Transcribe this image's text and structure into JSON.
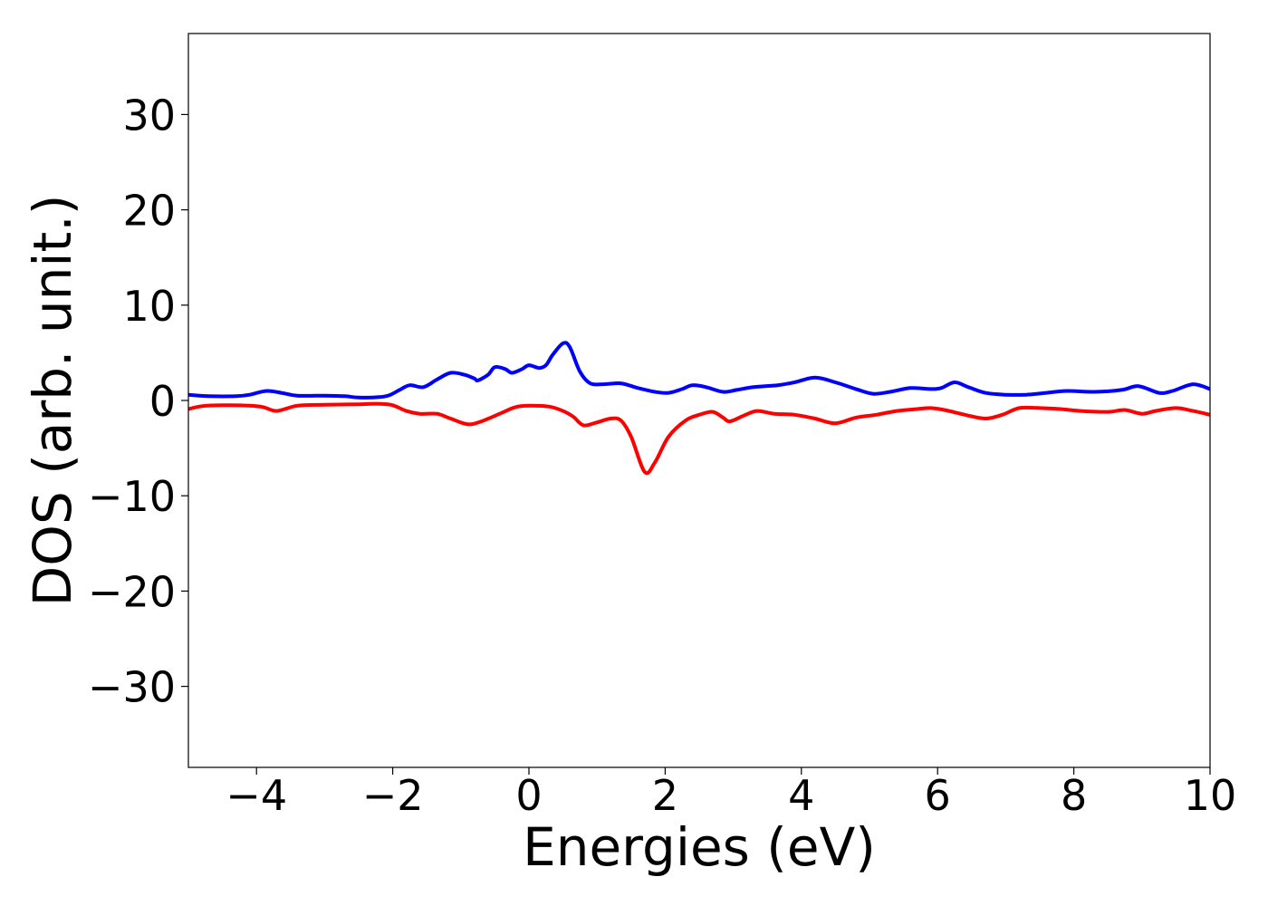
{
  "chart_data": {
    "type": "line",
    "title": "",
    "xlabel": "Energies (eV)",
    "ylabel": "DOS (arb. unit.)",
    "xlim": [
      -5,
      10
    ],
    "ylim": [
      -38.5,
      38.5
    ],
    "x_ticks": [
      -4,
      -2,
      0,
      2,
      4,
      6,
      8,
      10
    ],
    "x_tick_labels": [
      "−4",
      "−2",
      "0",
      "2",
      "4",
      "6",
      "8",
      "10"
    ],
    "y_ticks": [
      -30,
      -20,
      -10,
      0,
      10,
      20,
      30
    ],
    "y_tick_labels": [
      "−30",
      "−20",
      "−10",
      "0",
      "10",
      "20",
      "30"
    ],
    "grid": false,
    "legend": "none",
    "series": [
      {
        "color": "#0000ff",
        "points": [
          [
            -5.0,
            0.6
          ],
          [
            -4.7,
            0.45
          ],
          [
            -4.3,
            0.45
          ],
          [
            -4.1,
            0.6
          ],
          [
            -3.85,
            1.0
          ],
          [
            -3.6,
            0.75
          ],
          [
            -3.4,
            0.5
          ],
          [
            -3.0,
            0.5
          ],
          [
            -2.7,
            0.45
          ],
          [
            -2.5,
            0.3
          ],
          [
            -2.2,
            0.35
          ],
          [
            -2.05,
            0.55
          ],
          [
            -1.9,
            1.1
          ],
          [
            -1.75,
            1.6
          ],
          [
            -1.55,
            1.4
          ],
          [
            -1.35,
            2.2
          ],
          [
            -1.15,
            2.9
          ],
          [
            -0.95,
            2.7
          ],
          [
            -0.8,
            2.3
          ],
          [
            -0.75,
            2.1
          ],
          [
            -0.6,
            2.7
          ],
          [
            -0.5,
            3.5
          ],
          [
            -0.35,
            3.3
          ],
          [
            -0.25,
            2.9
          ],
          [
            -0.1,
            3.3
          ],
          [
            0.0,
            3.7
          ],
          [
            0.15,
            3.4
          ],
          [
            0.25,
            3.7
          ],
          [
            0.35,
            4.8
          ],
          [
            0.5,
            6.0
          ],
          [
            0.6,
            5.6
          ],
          [
            0.75,
            3.0
          ],
          [
            0.9,
            1.8
          ],
          [
            1.1,
            1.7
          ],
          [
            1.35,
            1.8
          ],
          [
            1.6,
            1.3
          ],
          [
            1.85,
            0.9
          ],
          [
            2.05,
            0.8
          ],
          [
            2.25,
            1.2
          ],
          [
            2.4,
            1.6
          ],
          [
            2.6,
            1.4
          ],
          [
            2.85,
            0.9
          ],
          [
            3.05,
            1.1
          ],
          [
            3.3,
            1.4
          ],
          [
            3.65,
            1.6
          ],
          [
            3.9,
            1.9
          ],
          [
            4.2,
            2.4
          ],
          [
            4.5,
            1.9
          ],
          [
            4.8,
            1.2
          ],
          [
            5.05,
            0.7
          ],
          [
            5.3,
            0.9
          ],
          [
            5.6,
            1.3
          ],
          [
            5.9,
            1.2
          ],
          [
            6.05,
            1.3
          ],
          [
            6.25,
            1.9
          ],
          [
            6.45,
            1.4
          ],
          [
            6.7,
            0.8
          ],
          [
            7.0,
            0.6
          ],
          [
            7.3,
            0.6
          ],
          [
            7.6,
            0.8
          ],
          [
            7.9,
            1.0
          ],
          [
            8.3,
            0.9
          ],
          [
            8.7,
            1.1
          ],
          [
            8.95,
            1.5
          ],
          [
            9.25,
            0.8
          ],
          [
            9.45,
            1.0
          ],
          [
            9.75,
            1.7
          ],
          [
            10.0,
            1.2
          ]
        ]
      },
      {
        "color": "#ff0000",
        "points": [
          [
            -5.0,
            -0.9
          ],
          [
            -4.8,
            -0.6
          ],
          [
            -4.5,
            -0.5
          ],
          [
            -4.1,
            -0.55
          ],
          [
            -3.9,
            -0.7
          ],
          [
            -3.7,
            -1.1
          ],
          [
            -3.4,
            -0.55
          ],
          [
            -3.0,
            -0.45
          ],
          [
            -2.5,
            -0.4
          ],
          [
            -2.2,
            -0.35
          ],
          [
            -2.0,
            -0.5
          ],
          [
            -1.8,
            -1.1
          ],
          [
            -1.6,
            -1.4
          ],
          [
            -1.35,
            -1.4
          ],
          [
            -1.15,
            -1.9
          ],
          [
            -0.9,
            -2.5
          ],
          [
            -0.7,
            -2.2
          ],
          [
            -0.4,
            -1.3
          ],
          [
            -0.2,
            -0.7
          ],
          [
            0.0,
            -0.55
          ],
          [
            0.3,
            -0.65
          ],
          [
            0.5,
            -1.1
          ],
          [
            0.65,
            -1.7
          ],
          [
            0.8,
            -2.6
          ],
          [
            1.0,
            -2.3
          ],
          [
            1.2,
            -1.9
          ],
          [
            1.35,
            -2.1
          ],
          [
            1.5,
            -3.8
          ],
          [
            1.7,
            -7.5
          ],
          [
            1.85,
            -6.5
          ],
          [
            2.05,
            -3.8
          ],
          [
            2.3,
            -2.1
          ],
          [
            2.5,
            -1.5
          ],
          [
            2.7,
            -1.2
          ],
          [
            2.85,
            -1.8
          ],
          [
            2.95,
            -2.2
          ],
          [
            3.15,
            -1.6
          ],
          [
            3.35,
            -1.1
          ],
          [
            3.6,
            -1.4
          ],
          [
            3.9,
            -1.5
          ],
          [
            4.2,
            -1.9
          ],
          [
            4.5,
            -2.4
          ],
          [
            4.8,
            -1.8
          ],
          [
            5.1,
            -1.5
          ],
          [
            5.4,
            -1.1
          ],
          [
            5.7,
            -0.9
          ],
          [
            5.9,
            -0.8
          ],
          [
            6.1,
            -1.0
          ],
          [
            6.4,
            -1.5
          ],
          [
            6.7,
            -1.9
          ],
          [
            6.95,
            -1.5
          ],
          [
            7.2,
            -0.8
          ],
          [
            7.5,
            -0.8
          ],
          [
            7.8,
            -0.9
          ],
          [
            8.1,
            -1.1
          ],
          [
            8.5,
            -1.2
          ],
          [
            8.75,
            -1.0
          ],
          [
            9.0,
            -1.4
          ],
          [
            9.2,
            -1.1
          ],
          [
            9.5,
            -0.8
          ],
          [
            9.75,
            -1.1
          ],
          [
            10.0,
            -1.5
          ]
        ]
      }
    ]
  }
}
